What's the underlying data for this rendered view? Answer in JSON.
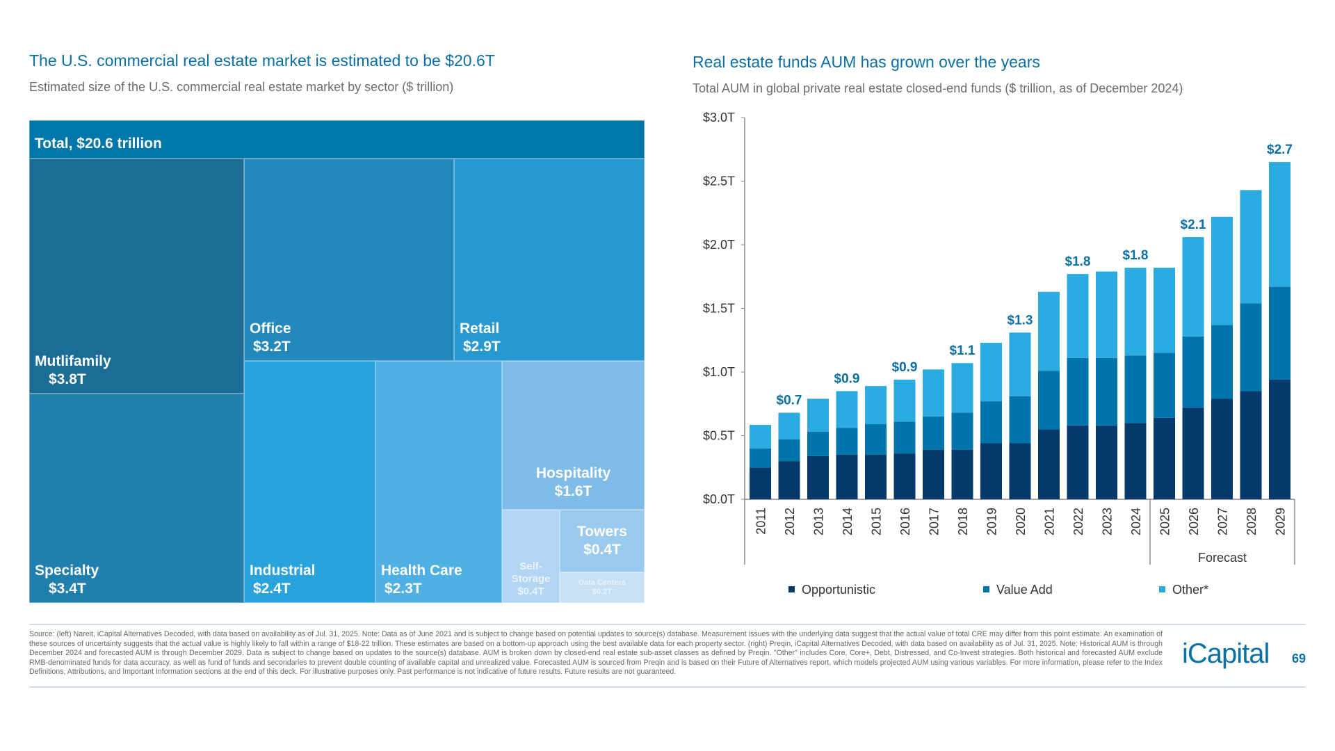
{
  "left": {
    "title": "The U.S. commercial real estate market is estimated to be $20.6T",
    "subtitle": "Estimated size of the U.S. commercial real estate market by sector ($ trillion)",
    "total_label": "Total, $20.6 trillion",
    "sectors": [
      {
        "name": "Mutlifamily",
        "value": "$3.8T",
        "color": "#1b6d96"
      },
      {
        "name": "Specialty",
        "value": "$3.4T",
        "color": "#207fad"
      },
      {
        "name": "Office",
        "value": "$3.2T",
        "color": "#2389bd"
      },
      {
        "name": "Retail",
        "value": "$2.9T",
        "color": "#2899d0"
      },
      {
        "name": "Industrial",
        "value": "$2.4T",
        "color": "#29a3dc"
      },
      {
        "name": "Health Care",
        "value": "$2.3T",
        "color": "#4fb0e3"
      },
      {
        "name": "Hospitality",
        "value": "$1.6T",
        "color": "#7fbde8"
      },
      {
        "name": "Self-Storage",
        "value": "$0.4T",
        "color": "#b1d5f2"
      },
      {
        "name": "Towers",
        "value": "$0.4T",
        "color": "#9acaee"
      },
      {
        "name": "Data Centers",
        "value": "$0.2T",
        "color": "#c6e0f5"
      }
    ],
    "total_color": "#0077ab"
  },
  "chart_data": {
    "type": "bar",
    "stacked": true,
    "title": "Real estate funds AUM has grown over the years",
    "subtitle": "Total AUM in global private real estate closed-end funds ($ trillion, as of December 2024)",
    "categories": [
      "2011",
      "2012",
      "2013",
      "2014",
      "2015",
      "2016",
      "2017",
      "2018",
      "2019",
      "2020",
      "2021",
      "2022",
      "2023",
      "2024",
      "2025",
      "2026",
      "2027",
      "2028",
      "2029"
    ],
    "series": [
      {
        "name": "Opportunistic",
        "color": "#05386b",
        "values": [
          0.25,
          0.3,
          0.34,
          0.35,
          0.35,
          0.36,
          0.39,
          0.39,
          0.44,
          0.44,
          0.55,
          0.58,
          0.58,
          0.6,
          0.64,
          0.72,
          0.79,
          0.85,
          0.94
        ]
      },
      {
        "name": "Value Add",
        "color": "#0074aa",
        "values": [
          0.15,
          0.17,
          0.19,
          0.21,
          0.24,
          0.25,
          0.26,
          0.29,
          0.33,
          0.37,
          0.46,
          0.53,
          0.53,
          0.53,
          0.51,
          0.56,
          0.58,
          0.69,
          0.73
        ]
      },
      {
        "name": "Other*",
        "color": "#2cabe2",
        "values": [
          0.185,
          0.21,
          0.26,
          0.29,
          0.3,
          0.33,
          0.37,
          0.39,
          0.46,
          0.5,
          0.62,
          0.66,
          0.68,
          0.69,
          0.67,
          0.78,
          0.85,
          0.89,
          0.98
        ]
      }
    ],
    "total_labels": [
      "",
      "$0.7",
      "",
      "$0.9",
      "",
      "$0.9",
      "",
      "$1.1",
      "",
      "$1.3",
      "",
      "$1.8",
      "",
      "$1.8",
      "",
      "$2.1",
      "",
      "",
      "$2.7"
    ],
    "label_color": "#0a6fa3",
    "yticks": [
      "$0.0T",
      "$0.5T",
      "$1.0T",
      "$1.5T",
      "$2.0T",
      "$2.5T",
      "$3.0T"
    ],
    "ylim": [
      0,
      3.0
    ],
    "forecast_label": "Forecast",
    "forecast_start": "2025",
    "grid": false,
    "legend": "bottom"
  },
  "footnote": "Source: (left) Nareit, iCapital Alternatives Decoded, with data based on availability as of Jul. 31, 2025. Note: Data as of June 2021 and is subject to change based on potential updates to source(s) database. Measurement issues with the underlying data suggest that the actual value of total CRE may differ from this point estimate. An examination of these sources of uncertainty suggests that the actual value is highly likely to fall within a range of $18-22 trillion. These estimates are based on a bottom-up approach using the best available data for each property sector. (right) Preqin, iCapital Alternatives Decoded, with data based on availability as of Jul. 31, 2025. Note: Historical AUM is through December 2024 and forecasted AUM is through December 2029. Data is subject to change based on updates to the source(s) database. AUM is broken down by closed-end real estate sub-asset classes as defined by Preqin. \"Other\" includes Core, Core+, Debt, Distressed, and Co-Invest strategies. Both historical and forecasted AUM exclude RMB-denominated funds for data accuracy, as well as fund of funds and secondaries to prevent double counting of available capital and unrealized value. Forecasted AUM is sourced from Preqin and is based on their Future of Alternatives report, which models projected AUM using various variables. For more information, please refer to the Index Definitions, Attributions, and Important Information sections at the end of this deck. For illustrative purposes only. Past performance is not indicative of future results. Future results are not guaranteed.",
  "logo": "iCapital",
  "page_number": "69"
}
